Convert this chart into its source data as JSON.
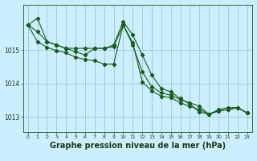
{
  "background_color": "#cceeff",
  "grid_color": "#99cccc",
  "line_color": "#1a5c1a",
  "xlabel": "Graphe pression niveau de la mer (hPa)",
  "xlabel_fontsize": 7,
  "ylim": [
    1012.55,
    1016.35
  ],
  "xlim": [
    -0.5,
    23.5
  ],
  "yticks": [
    1013,
    1014,
    1015
  ],
  "xticks": [
    0,
    1,
    2,
    3,
    4,
    5,
    6,
    7,
    8,
    9,
    10,
    11,
    12,
    13,
    14,
    15,
    16,
    17,
    18,
    19,
    20,
    21,
    22,
    23
  ],
  "series1": [
    1015.75,
    1015.95,
    1015.25,
    1015.15,
    1015.05,
    1015.05,
    1015.05,
    1015.05,
    1015.05,
    1015.15,
    1015.85,
    1015.45,
    1014.85,
    1014.25,
    1013.85,
    1013.75,
    1013.55,
    1013.38,
    1013.15,
    1013.08,
    1013.22,
    1013.28,
    1013.28,
    1013.12
  ],
  "series2": [
    1015.75,
    1015.55,
    1015.25,
    1015.15,
    1015.05,
    1014.95,
    1014.85,
    1015.05,
    1015.05,
    1015.1,
    1015.75,
    1015.15,
    1014.35,
    1013.9,
    1013.72,
    1013.65,
    1013.52,
    1013.42,
    1013.32,
    1013.08,
    1013.18,
    1013.22,
    1013.28,
    1013.12
  ],
  "series3": [
    1015.75,
    1015.25,
    1015.08,
    1014.98,
    1014.92,
    1014.78,
    1014.72,
    1014.68,
    1014.58,
    1014.58,
    1015.75,
    1015.22,
    1014.05,
    1013.78,
    1013.62,
    1013.58,
    1013.42,
    1013.32,
    1013.22,
    1013.08,
    1013.18,
    1013.22,
    1013.28,
    1013.12
  ]
}
